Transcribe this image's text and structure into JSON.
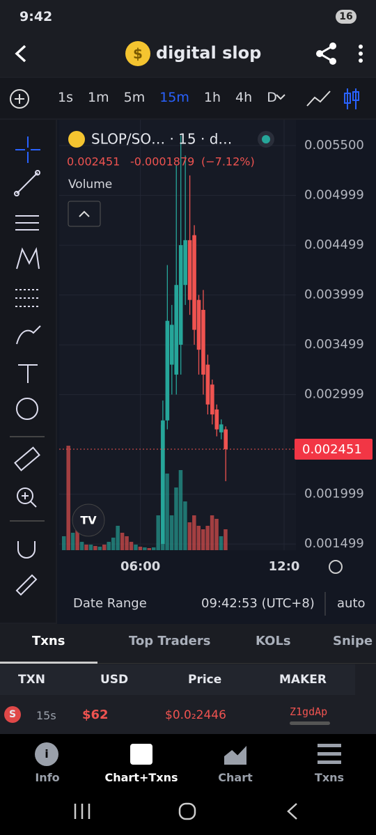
{
  "status_bar": {
    "time": "9:42",
    "battery": "16"
  },
  "header": {
    "title": "digital slop"
  },
  "timeframes": [
    "1s",
    "1m",
    "5m",
    "15m",
    "1h",
    "4h",
    "D"
  ],
  "active_timeframe_index": 3,
  "chart_data": {
    "type": "candlestick",
    "title": "SLOP/SO… · 15 · d…",
    "legend": {
      "price": "0.002451",
      "change": "-0.0001879",
      "change_pct": "(−7.12%)"
    },
    "volume_label": "Volume",
    "up_color": "#26a69a",
    "down_color": "#ef5350",
    "open": [
      null,
      null,
      null,
      null,
      null,
      null,
      null,
      null,
      null,
      null,
      null,
      null,
      null,
      null,
      null,
      null,
      null,
      null,
      null,
      null,
      null,
      null,
      0.0015,
      0.00274,
      0.0033,
      0.0032,
      0.0035,
      0.0041,
      0.00455,
      0.0046,
      0.00395,
      0.00385,
      0.0033,
      0.0031,
      0.00285,
      0.00262,
      0.00265
    ],
    "high": [
      null,
      null,
      null,
      null,
      null,
      null,
      null,
      null,
      null,
      null,
      null,
      null,
      null,
      null,
      null,
      null,
      null,
      null,
      null,
      null,
      null,
      null,
      0.00294,
      0.0043,
      0.0039,
      0.0053,
      0.0056,
      0.0054,
      0.0052,
      0.0047,
      0.004,
      0.00405,
      0.0034,
      0.00315,
      0.0029,
      0.00275,
      0.00268
    ],
    "low": [
      null,
      null,
      null,
      null,
      null,
      null,
      null,
      null,
      null,
      null,
      null,
      null,
      null,
      null,
      null,
      null,
      null,
      null,
      null,
      null,
      null,
      null,
      0.0015,
      0.00265,
      0.003,
      0.003,
      0.0032,
      0.0039,
      0.0038,
      0.0035,
      0.0032,
      0.003,
      0.0028,
      0.0027,
      0.00258,
      0.00255,
      0.00213
    ],
    "close": [
      null,
      null,
      null,
      null,
      null,
      null,
      null,
      null,
      null,
      null,
      null,
      null,
      null,
      null,
      null,
      null,
      null,
      null,
      null,
      null,
      null,
      null,
      0.00274,
      0.00374,
      0.0037,
      0.0041,
      0.0045,
      0.00455,
      0.00395,
      0.00365,
      0.00345,
      0.0032,
      0.0029,
      0.0028,
      0.00265,
      0.0027,
      0.002451
    ],
    "volume": [
      20,
      150,
      25,
      30,
      12,
      8,
      8,
      6,
      5,
      8,
      12,
      18,
      35,
      25,
      20,
      12,
      8,
      5,
      4,
      3,
      4,
      50,
      180,
      110,
      50,
      90,
      115,
      70,
      40,
      50,
      35,
      30,
      35,
      50,
      45,
      20,
      30
    ],
    "volume_colors": [
      "#26a69a",
      "#ef5350",
      "#26a69a",
      "#ef5350",
      "#26a69a",
      "#ef5350",
      "#26a69a",
      "#ef5350",
      "#26a69a",
      "#ef5350",
      "#26a69a",
      "#26a69a",
      "#26a69a",
      "#ef5350",
      "#ef5350",
      "#ef5350",
      "#26a69a",
      "#ef5350",
      "#26a69a",
      "#ef5350",
      "#26a69a",
      "#26a69a",
      "#26a69a",
      "#26a69a",
      "#26a69a",
      "#26a69a",
      "#26a69a",
      "#26a69a",
      "#ef5350",
      "#ef5350",
      "#ef5350",
      "#ef5350",
      "#ef5350",
      "#ef5350",
      "#ef5350",
      "#26a69a",
      "#ef5350"
    ],
    "ylim": [
      0.001437,
      0.005703
    ],
    "yticks": [
      {
        "value": 0.0055,
        "label": "0.005500"
      },
      {
        "value": 0.004999,
        "label": "0.004999"
      },
      {
        "value": 0.004499,
        "label": "0.004499"
      },
      {
        "value": 0.003999,
        "label": "0.003999"
      },
      {
        "value": 0.003499,
        "label": "0.003499"
      },
      {
        "value": 0.002999,
        "label": "0.002999"
      },
      {
        "value": 0.001999,
        "label": "0.001999"
      },
      {
        "value": 0.001499,
        "label": "0.001499"
      }
    ],
    "xticks": [
      {
        "value": 17,
        "label": "06:00"
      },
      {
        "value": 49,
        "label": "12:0"
      }
    ],
    "last_price": {
      "value": 0.002451,
      "label": "0.002451"
    },
    "grid": true
  },
  "chart_footer": {
    "range": "Date Range",
    "time": "09:42:53 (UTC+8)",
    "scale": "auto"
  },
  "tabs": [
    "Txns",
    "Top Traders",
    "KOLs",
    "Snipe"
  ],
  "table": {
    "header": [
      "TXN",
      "USD",
      "Price",
      "MAKER"
    ],
    "rows": [
      {
        "type": "S",
        "age": "15s",
        "usd": "$62",
        "price": "$0.0₂2446",
        "maker": "Z1gdAp"
      }
    ]
  },
  "nav": [
    "Info",
    "Chart+Txns",
    "Chart",
    "Txns"
  ]
}
